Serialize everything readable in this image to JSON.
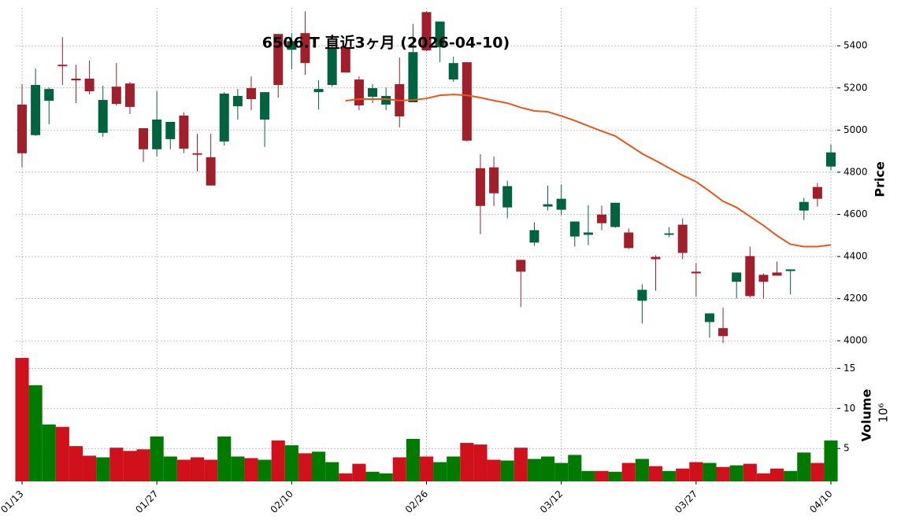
{
  "chart_data": {
    "type": "candlestick",
    "title": "6506.T 直近3ヶ月 (2026-04-10)",
    "ylabel": "Price",
    "volume_label": "Volume",
    "volume_offset_label": "10⁶",
    "categories": [
      "01/13",
      null,
      null,
      null,
      null,
      null,
      null,
      null,
      null,
      null,
      "01/27",
      null,
      null,
      null,
      null,
      null,
      null,
      null,
      null,
      null,
      "02/10",
      null,
      null,
      null,
      null,
      null,
      null,
      null,
      null,
      null,
      "02/26",
      null,
      null,
      null,
      null,
      null,
      null,
      null,
      null,
      null,
      "03/12",
      null,
      null,
      null,
      null,
      null,
      null,
      null,
      null,
      null,
      "03/27",
      null,
      null,
      null,
      null,
      null,
      null,
      null,
      null,
      null,
      "04/10"
    ],
    "open": [
      5121,
      4976,
      5139,
      5310,
      5244,
      5244,
      4987,
      5206,
      5221,
      5009,
      4909,
      4957,
      5069,
      4890,
      4871,
      4946,
      5113,
      5199,
      5050,
      5456,
      5381,
      5460,
      5180,
      5214,
      5393,
      5240,
      5158,
      5121,
      5218,
      5132,
      5560,
      5393,
      5240,
      5322,
      4819,
      4823,
      4633,
      4384,
      4466,
      4637,
      4622,
      4495,
      4503,
      4599,
      4540,
      4514,
      4190,
      4398,
      4503,
      4551,
      4328,
      4089,
      4060,
      4280,
      4402,
      4313,
      4324,
      4331,
      4618,
      4730,
      4827
    ],
    "high": [
      5218,
      5292,
      5202,
      5441,
      5310,
      5330,
      5210,
      5318,
      5229,
      5009,
      5184,
      5039,
      5084,
      4983,
      4983,
      5180,
      5195,
      5255,
      5180,
      5456,
      5460,
      5564,
      5236,
      5404,
      5400,
      5255,
      5218,
      5202,
      5344,
      5504,
      5564,
      5515,
      5348,
      5322,
      4886,
      4875,
      4760,
      4384,
      4562,
      4737,
      4741,
      4566,
      4644,
      4641,
      4655,
      4533,
      4268,
      4406,
      4540,
      4581,
      4369,
      4130,
      4157,
      4324,
      4447,
      4320,
      4376,
      4339,
      4678,
      4749,
      4931
    ],
    "low": [
      4823,
      4972,
      5028,
      5214,
      5128,
      5169,
      4968,
      5117,
      5076,
      4849,
      4875,
      4909,
      4890,
      4804,
      4737,
      4927,
      5050,
      5095,
      4920,
      5154,
      5288,
      5262,
      5098,
      5206,
      5273,
      5095,
      5128,
      5095,
      5013,
      5132,
      5374,
      5322,
      5229,
      4946,
      4506,
      4640,
      4581,
      4160,
      4451,
      4618,
      4596,
      4447,
      4454,
      4525,
      4536,
      4436,
      4082,
      4238,
      4492,
      4387,
      4209,
      4015,
      3989,
      4201,
      4205,
      4201,
      4309,
      4220,
      4573,
      4637,
      4808
    ],
    "close": [
      4890,
      5214,
      5195,
      5303,
      5236,
      5184,
      5143,
      5124,
      5110,
      4909,
      5050,
      5039,
      4912,
      4883,
      4737,
      5173,
      5162,
      5147,
      5180,
      5214,
      5422,
      5318,
      5195,
      5393,
      5273,
      5117,
      5199,
      5162,
      5065,
      5370,
      5378,
      5515,
      5318,
      4950,
      4640,
      4700,
      4734,
      4328,
      4525,
      4648,
      4674,
      4566,
      4514,
      4558,
      4655,
      4440,
      4242,
      4387,
      4510,
      4417,
      4320,
      4130,
      4022,
      4324,
      4212,
      4280,
      4309,
      4339,
      4659,
      4674,
      4894
    ],
    "volume": [
      16.3,
      12.9,
      8.0,
      7.7,
      5.3,
      4.1,
      3.9,
      5.1,
      4.7,
      4.9,
      6.5,
      4.0,
      3.6,
      3.9,
      3.6,
      6.5,
      4.0,
      3.8,
      3.6,
      6.0,
      5.4,
      4.4,
      4.6,
      3.3,
      1.9,
      3.1,
      2.1,
      1.9,
      3.9,
      6.2,
      4.0,
      3.3,
      4.0,
      5.7,
      5.5,
      3.6,
      3.5,
      5.1,
      3.7,
      4.0,
      3.2,
      4.2,
      2.2,
      2.2,
      2.1,
      3.2,
      3.7,
      2.8,
      2.2,
      2.5,
      3.3,
      3.2,
      2.7,
      2.9,
      3.1,
      1.9,
      2.5,
      2.2,
      4.5,
      3.2,
      6.0
    ],
    "ma_values": [
      null,
      null,
      null,
      null,
      null,
      null,
      null,
      null,
      null,
      null,
      null,
      null,
      null,
      null,
      null,
      null,
      null,
      null,
      null,
      null,
      null,
      null,
      null,
      null,
      5139,
      5147,
      5147,
      5147,
      5140,
      5143,
      5150,
      5165,
      5169,
      5165,
      5154,
      5140,
      5128,
      5107,
      5091,
      5087,
      5067,
      5045,
      5020,
      4995,
      4972,
      4930,
      4888,
      4855,
      4820,
      4785,
      4755,
      4710,
      4662,
      4633,
      4590,
      4547,
      4499,
      4458,
      4447,
      4447,
      4455
    ],
    "ma_color": "#e8561a",
    "up_color": "#006340",
    "down_color": "#a01f2a",
    "volume_up_color": "#007a00",
    "volume_down_color": "#d0101a",
    "ylim": [
      3930,
      5580
    ],
    "yticks": [
      4000,
      4200,
      4400,
      4600,
      4800,
      5000,
      5200,
      5400
    ],
    "volume_ylim": [
      0.9,
      16.6
    ],
    "volume_yticks": [
      5,
      10,
      15
    ],
    "grid": true
  }
}
